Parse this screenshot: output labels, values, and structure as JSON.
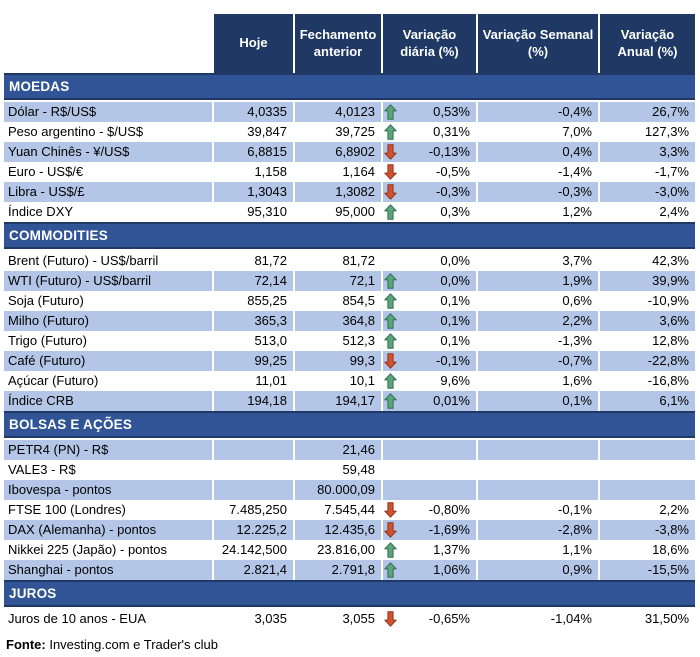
{
  "colors": {
    "header_bg": "#1F3864",
    "band_bg": "#305496",
    "band_border": "#1F3864",
    "shaded_row_bg": "#B4C6E7",
    "up_arrow_fill": "#5EA47B",
    "up_arrow_stroke": "#2F6E54",
    "down_arrow_fill": "#CF5233",
    "down_arrow_stroke": "#93331A"
  },
  "header": {
    "columns": [
      "Hoje",
      "Fechamento anterior",
      "Variação diária (%)",
      "Variação Semanal (%)",
      "Variação Anual (%)"
    ]
  },
  "sections": [
    {
      "title": "MOEDAS",
      "slug": "moedas",
      "start_shaded": true,
      "rows": [
        {
          "label": "Dólar - R$/US$",
          "hoje": "4,0335",
          "fechamento": "4,0123",
          "arrow": "up",
          "diaria": "0,53%",
          "semanal": "-0,4%",
          "anual": "26,7%"
        },
        {
          "label": "Peso argentino - $/US$",
          "hoje": "39,847",
          "fechamento": "39,725",
          "arrow": "up",
          "diaria": "0,31%",
          "semanal": "7,0%",
          "anual": "127,3%"
        },
        {
          "label": "Yuan Chinês - ¥/US$",
          "hoje": "6,8815",
          "fechamento": "6,8902",
          "arrow": "down",
          "diaria": "-0,13%",
          "semanal": "0,4%",
          "anual": "3,3%"
        },
        {
          "label": "Euro - US$/€",
          "hoje": "1,158",
          "fechamento": "1,164",
          "arrow": "down",
          "diaria": "-0,5%",
          "semanal": "-1,4%",
          "anual": "-1,7%"
        },
        {
          "label": "Libra - US$/£",
          "hoje": "1,3043",
          "fechamento": "1,3082",
          "arrow": "down",
          "diaria": "-0,3%",
          "semanal": "-0,3%",
          "anual": "-3,0%"
        },
        {
          "label": "Índice DXY",
          "hoje": "95,310",
          "fechamento": "95,000",
          "arrow": "up",
          "diaria": "0,3%",
          "semanal": "1,2%",
          "anual": "2,4%"
        }
      ]
    },
    {
      "title": "COMMODITIES",
      "slug": "commodities",
      "start_shaded": false,
      "rows": [
        {
          "label": "Brent (Futuro) - US$/barril",
          "hoje": "81,72",
          "fechamento": "81,72",
          "arrow": "",
          "diaria": "0,0%",
          "semanal": "3,7%",
          "anual": "42,3%"
        },
        {
          "label": "WTI (Futuro) - US$/barril",
          "hoje": "72,14",
          "fechamento": "72,1",
          "arrow": "up",
          "diaria": "0,0%",
          "semanal": "1,9%",
          "anual": "39,9%"
        },
        {
          "label": "Soja (Futuro)",
          "hoje": "855,25",
          "fechamento": "854,5",
          "arrow": "up",
          "diaria": "0,1%",
          "semanal": "0,6%",
          "anual": "-10,9%"
        },
        {
          "label": "Milho (Futuro)",
          "hoje": "365,3",
          "fechamento": "364,8",
          "arrow": "up",
          "diaria": "0,1%",
          "semanal": "2,2%",
          "anual": "3,6%"
        },
        {
          "label": "Trigo (Futuro)",
          "hoje": "513,0",
          "fechamento": "512,3",
          "arrow": "up",
          "diaria": "0,1%",
          "semanal": "-1,3%",
          "anual": "12,8%"
        },
        {
          "label": "Café (Futuro)",
          "hoje": "99,25",
          "fechamento": "99,3",
          "arrow": "down",
          "diaria": "-0,1%",
          "semanal": "-0,7%",
          "anual": "-22,8%"
        },
        {
          "label": "Açúcar (Futuro)",
          "hoje": "11,01",
          "fechamento": "10,1",
          "arrow": "up",
          "diaria": "9,6%",
          "semanal": "1,6%",
          "anual": "-16,8%"
        },
        {
          "label": "Índice CRB",
          "hoje": "194,18",
          "fechamento": "194,17",
          "arrow": "up",
          "diaria": "0,01%",
          "semanal": "0,1%",
          "anual": "6,1%"
        }
      ]
    },
    {
      "title": "BOLSAS E AÇÕES",
      "slug": "bolsas-e-acoes",
      "start_shaded": true,
      "rows": [
        {
          "label": "PETR4 (PN) - R$",
          "hoje": "",
          "fechamento": "21,46",
          "arrow": "",
          "diaria": "",
          "semanal": "",
          "anual": ""
        },
        {
          "label": "VALE3 - R$",
          "hoje": "",
          "fechamento": "59,48",
          "arrow": "",
          "diaria": "",
          "semanal": "",
          "anual": ""
        },
        {
          "label": "Ibovespa - pontos",
          "hoje": "",
          "fechamento": "80.000,09",
          "arrow": "",
          "diaria": "",
          "semanal": "",
          "anual": ""
        },
        {
          "label": "FTSE 100 (Londres)",
          "hoje": "7.485,250",
          "fechamento": "7.545,44",
          "arrow": "down",
          "diaria": "-0,80%",
          "semanal": "-0,1%",
          "anual": "2,2%"
        },
        {
          "label": "DAX (Alemanha) - pontos",
          "hoje": "12.225,2",
          "fechamento": "12.435,6",
          "arrow": "down",
          "diaria": "-1,69%",
          "semanal": "-2,8%",
          "anual": "-3,8%"
        },
        {
          "label": "Nikkei 225 (Japão) - pontos",
          "hoje": "24.142,500",
          "fechamento": "23.816,00",
          "arrow": "up",
          "diaria": "1,37%",
          "semanal": "1,1%",
          "anual": "18,6%"
        },
        {
          "label": "Shanghai - pontos",
          "hoje": "2.821,4",
          "fechamento": "2.791,8",
          "arrow": "up",
          "diaria": "1,06%",
          "semanal": "0,9%",
          "anual": "-15,5%"
        }
      ]
    },
    {
      "title": "JUROS",
      "slug": "juros",
      "start_shaded": false,
      "rows": [
        {
          "label": "Juros de 10 anos - EUA",
          "hoje": "3,035",
          "fechamento": "3,055",
          "arrow": "down",
          "diaria": "-0,65%",
          "semanal": "-1,04%",
          "anual": "31,50%"
        }
      ]
    }
  ],
  "footer": {
    "label": "Fonte:",
    "text": " Investing.com e Trader's club"
  }
}
